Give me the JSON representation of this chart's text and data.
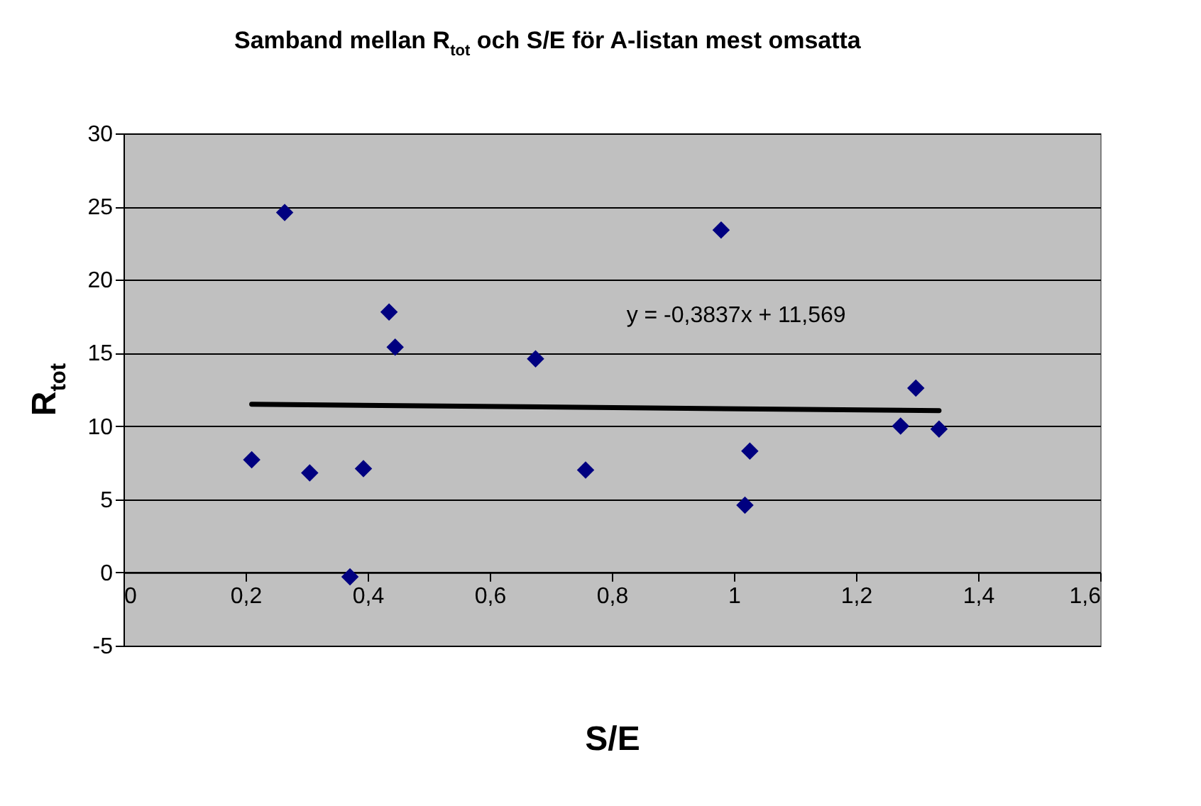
{
  "chart_data": {
    "type": "scatter",
    "title": "Samband mellan R$_{tot}$ och S/E för A-listan mest omsatta",
    "xlabel": "S/E",
    "ylabel": "R$_{tot}$",
    "xlim": [
      0,
      1.6
    ],
    "ylim": [
      -5,
      30
    ],
    "xticks": [
      0,
      {
        "value": 0.2,
        "label": "0,2"
      },
      {
        "value": 0.4,
        "label": "0,4"
      },
      {
        "value": 0.6,
        "label": "0,6"
      },
      {
        "value": 0.8,
        "label": "0,8"
      },
      1,
      {
        "value": 1.2,
        "label": "1,2"
      },
      {
        "value": 1.4,
        "label": "1,4"
      },
      {
        "value": 1.6,
        "label": "1,6"
      }
    ],
    "yticks": [
      -5,
      0,
      5,
      10,
      15,
      20,
      25,
      30
    ],
    "grid": "y",
    "series": [
      {
        "marker": "diamond",
        "color": "#000080",
        "x": [
          0.21,
          0.264,
          0.305,
          0.371,
          0.393,
          0.435,
          0.445,
          0.675,
          0.757,
          0.979,
          1.018,
          1.026,
          1.273,
          1.298,
          1.336
        ],
        "values": [
          7.7,
          24.6,
          6.8,
          -0.3,
          7.1,
          17.8,
          15.4,
          14.6,
          7.0,
          23.4,
          4.6,
          8.3,
          10.0,
          12.6,
          9.8
        ]
      },
      {
        "type": "line",
        "line_style": "solid",
        "color": "#000000",
        "x": [
          0.21,
          1.336
        ],
        "values": [
          11.49,
          11.06
        ]
      }
    ],
    "annotations": [
      "y = -0,3837x + 11,569"
    ]
  }
}
